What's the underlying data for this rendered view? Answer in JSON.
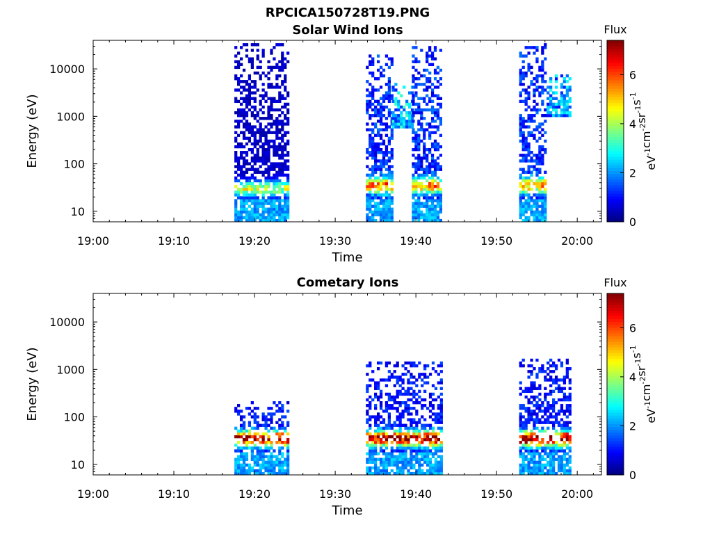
{
  "figure": {
    "title": "RPCICA150728T19.PNG"
  },
  "chart_data": [
    {
      "type": "heatmap",
      "title": "Solar Wind Ions",
      "xlabel": "Time",
      "ylabel": "Energy (eV)",
      "x_ticks": [
        "19:00",
        "19:10",
        "19:20",
        "19:30",
        "19:40",
        "19:50",
        "20:00"
      ],
      "y_ticks": [
        "10",
        "100",
        "1000",
        "10000"
      ],
      "y_scale": "log",
      "ylim": [
        6,
        40000
      ],
      "xlim": [
        "19:00",
        "20:03"
      ],
      "colorbar": {
        "title": "Flux",
        "unit_base": "eV",
        "unit_parts": [
          "eV",
          "cm",
          "sr",
          "s"
        ],
        "unit_exponents": [
          "-1",
          "-2",
          "-1",
          "-1"
        ],
        "ticks": [
          "0",
          "2",
          "4",
          "6"
        ],
        "range": [
          0,
          7.4
        ],
        "colormap": "jet"
      },
      "blocks": [
        {
          "start": "19:17.5",
          "end": "19:24.0",
          "emin": 6,
          "emax": 35000,
          "core": [
            {
              "e": 30,
              "level": 4.0
            }
          ],
          "hi_level": 0.5
        },
        {
          "start": "19:33.8",
          "end": "19:37.0",
          "emin": 6,
          "emax": 20000,
          "core": [
            {
              "e": 35,
              "level": 4.8
            }
          ],
          "hi_level": 1.2
        },
        {
          "start": "19:37.0",
          "end": "19:39.5",
          "emin": 600,
          "emax": 5000,
          "core": [],
          "hi_level": 2.2
        },
        {
          "start": "19:39.5",
          "end": "19:43.0",
          "emin": 6,
          "emax": 30000,
          "core": [
            {
              "e": 35,
              "level": 4.6
            }
          ],
          "hi_level": 1.2
        },
        {
          "start": "19:52.8",
          "end": "19:56.2",
          "emin": 6,
          "emax": 35000,
          "core": [
            {
              "e": 35,
              "level": 4.5
            }
          ],
          "hi_level": 1.2
        },
        {
          "start": "19:56.2",
          "end": "19:59.0",
          "emin": 1000,
          "emax": 8000,
          "core": [],
          "hi_level": 2.0
        }
      ]
    },
    {
      "type": "heatmap",
      "title": "Cometary Ions",
      "xlabel": "Time",
      "ylabel": "Energy (eV)",
      "x_ticks": [
        "19:00",
        "19:10",
        "19:20",
        "19:30",
        "19:40",
        "19:50",
        "20:00"
      ],
      "y_ticks": [
        "10",
        "100",
        "1000",
        "10000"
      ],
      "y_scale": "log",
      "ylim": [
        6,
        40000
      ],
      "xlim": [
        "19:00",
        "20:03"
      ],
      "colorbar": {
        "title": "Flux",
        "unit_base": "eV",
        "unit_parts": [
          "eV",
          "cm",
          "sr",
          "s"
        ],
        "unit_exponents": [
          "-1",
          "-2",
          "-1",
          "-1"
        ],
        "ticks": [
          "0",
          "2",
          "4",
          "6"
        ],
        "range": [
          0,
          7.4
        ],
        "colormap": "jet"
      },
      "blocks": [
        {
          "start": "19:17.5",
          "end": "19:24.0",
          "emin": 6,
          "emax": 220,
          "core": [
            {
              "e": 35,
              "level": 6.5
            }
          ],
          "hi_level": 1.0
        },
        {
          "start": "19:33.8",
          "end": "19:43.0",
          "emin": 6,
          "emax": 1500,
          "core": [
            {
              "e": 35,
              "level": 6.8
            }
          ],
          "hi_level": 1.0
        },
        {
          "start": "19:52.8",
          "end": "19:59.0",
          "emin": 6,
          "emax": 1600,
          "core": [
            {
              "e": 35,
              "level": 6.9
            }
          ],
          "hi_level": 1.0
        }
      ]
    }
  ]
}
